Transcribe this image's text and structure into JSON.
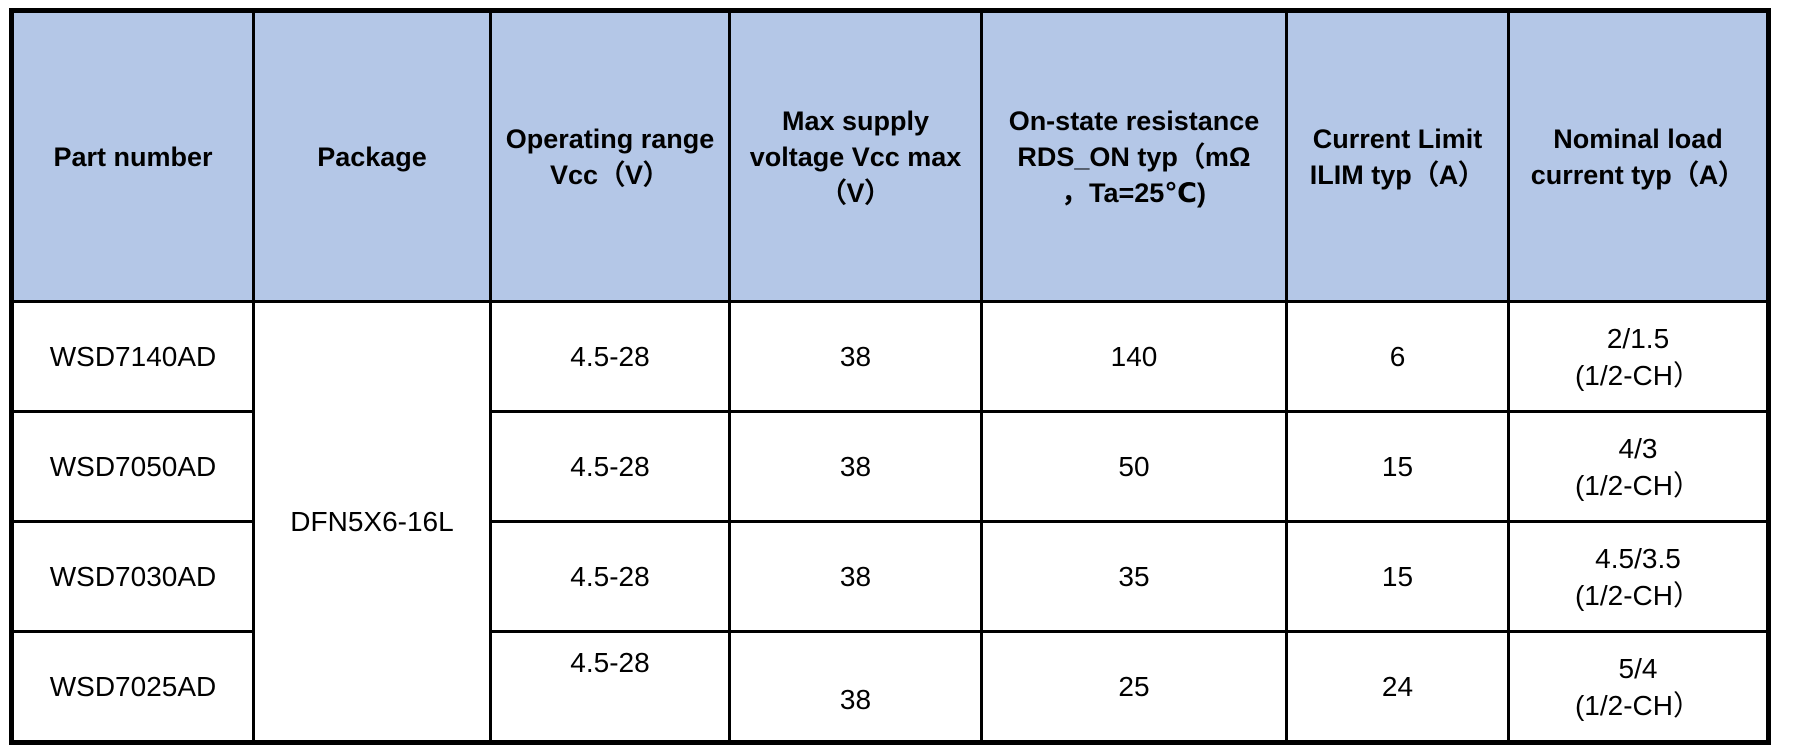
{
  "table": {
    "colors": {
      "header_bg": "#b4c7e7",
      "border": "#000000",
      "text": "#000000",
      "row_bg": "#ffffff"
    },
    "columns": [
      {
        "id": "part_number",
        "lines": [
          "Part number"
        ]
      },
      {
        "id": "package",
        "lines": [
          "Package"
        ]
      },
      {
        "id": "vcc_range",
        "lines": [
          "Operating range",
          "Vcc（V）"
        ]
      },
      {
        "id": "vcc_max",
        "lines": [
          "Max supply",
          "voltage Vcc max",
          "（V）"
        ]
      },
      {
        "id": "rds_on",
        "lines": [
          "On-state resistance",
          "RDS_ON typ（mΩ",
          "，Ta=25℃)"
        ]
      },
      {
        "id": "ilim",
        "lines": [
          "Current Limit",
          "ILIM typ（A）"
        ]
      },
      {
        "id": "load",
        "lines": [
          "Nominal load",
          "current typ（A）"
        ]
      }
    ],
    "package_value": "DFN5X6-16L",
    "rows": [
      {
        "part": "WSD7140AD",
        "vcc_range": "4.5-28",
        "vcc_max": "38",
        "rds_on": "140",
        "ilim": "6",
        "load": [
          "2/1.5",
          "(1/2-CH）"
        ]
      },
      {
        "part": "WSD7050AD",
        "vcc_range": "4.5-28",
        "vcc_max": "38",
        "rds_on": "50",
        "ilim": "15",
        "load": [
          "4/3",
          "(1/2-CH）"
        ]
      },
      {
        "part": "WSD7030AD",
        "vcc_range": "4.5-28",
        "vcc_max": "38",
        "rds_on": "35",
        "ilim": "15",
        "load": [
          "4.5/3.5",
          "(1/2-CH）"
        ]
      },
      {
        "part": "WSD7025AD",
        "vcc_range": "4.5-28",
        "vcc_max": "38",
        "rds_on": "25",
        "ilim": "24",
        "load": [
          "5/4",
          "(1/2-CH）"
        ]
      }
    ]
  }
}
